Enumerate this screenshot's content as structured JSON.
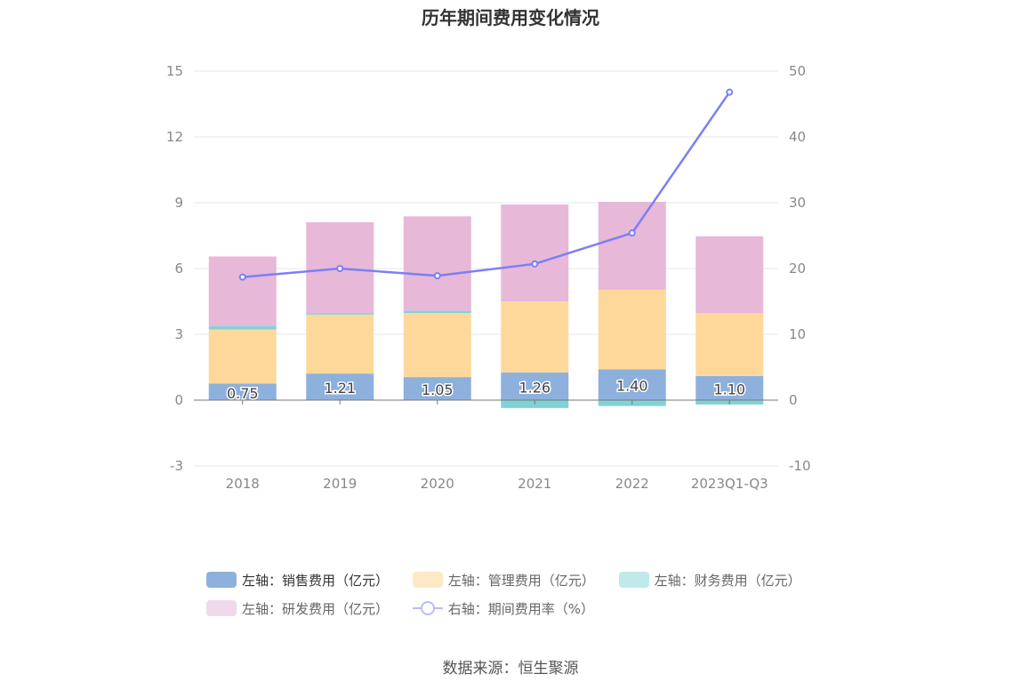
{
  "chart_data": {
    "type": "bar",
    "title": "历年期间费用变化情况",
    "categories": [
      "2018",
      "2019",
      "2020",
      "2021",
      "2022",
      "2023Q1-Q3"
    ],
    "left_axis": {
      "ylim": [
        -3,
        15
      ],
      "ticks": [
        -3,
        0,
        3,
        6,
        9,
        12,
        15
      ]
    },
    "right_axis": {
      "ylim": [
        -10,
        50
      ],
      "ticks": [
        -10,
        0,
        10,
        20,
        30,
        40,
        50
      ]
    },
    "grid": true,
    "legend_position": "bottom",
    "series": [
      {
        "name": "左轴：销售费用（亿元）",
        "axis": "left",
        "type": "bar",
        "stack": true,
        "color": "#8eb0dd",
        "labels": true,
        "values": [
          0.75,
          1.21,
          1.05,
          1.26,
          1.4,
          1.1
        ]
      },
      {
        "name": "左轴：管理费用（亿元）",
        "axis": "left",
        "type": "bar",
        "stack": true,
        "color": "#fed89b",
        "values": [
          2.47,
          2.69,
          2.92,
          3.24,
          3.63,
          2.86
        ]
      },
      {
        "name": "左轴：财务费用（亿元）",
        "axis": "left",
        "type": "bar",
        "stack": true,
        "color": "#7fd3d6",
        "values": [
          0.16,
          0.07,
          0.1,
          -0.36,
          -0.27,
          -0.2
        ]
      },
      {
        "name": "左轴：研发费用（亿元）",
        "axis": "left",
        "type": "bar",
        "stack": true,
        "color": "#e7b8d8",
        "values": [
          3.17,
          4.14,
          4.31,
          4.42,
          4.01,
          3.51
        ]
      },
      {
        "name": "右轴：期间费用率（%）",
        "axis": "right",
        "type": "line",
        "color": "#7b7ff5",
        "values": [
          18.7,
          20.0,
          18.9,
          20.7,
          25.4,
          46.8
        ]
      }
    ]
  },
  "legend_colors": [
    "#8eb0dd",
    "#fde9c6",
    "#c0e9ea",
    "#f1d9ec"
  ],
  "source": "数据来源：恒生聚源"
}
